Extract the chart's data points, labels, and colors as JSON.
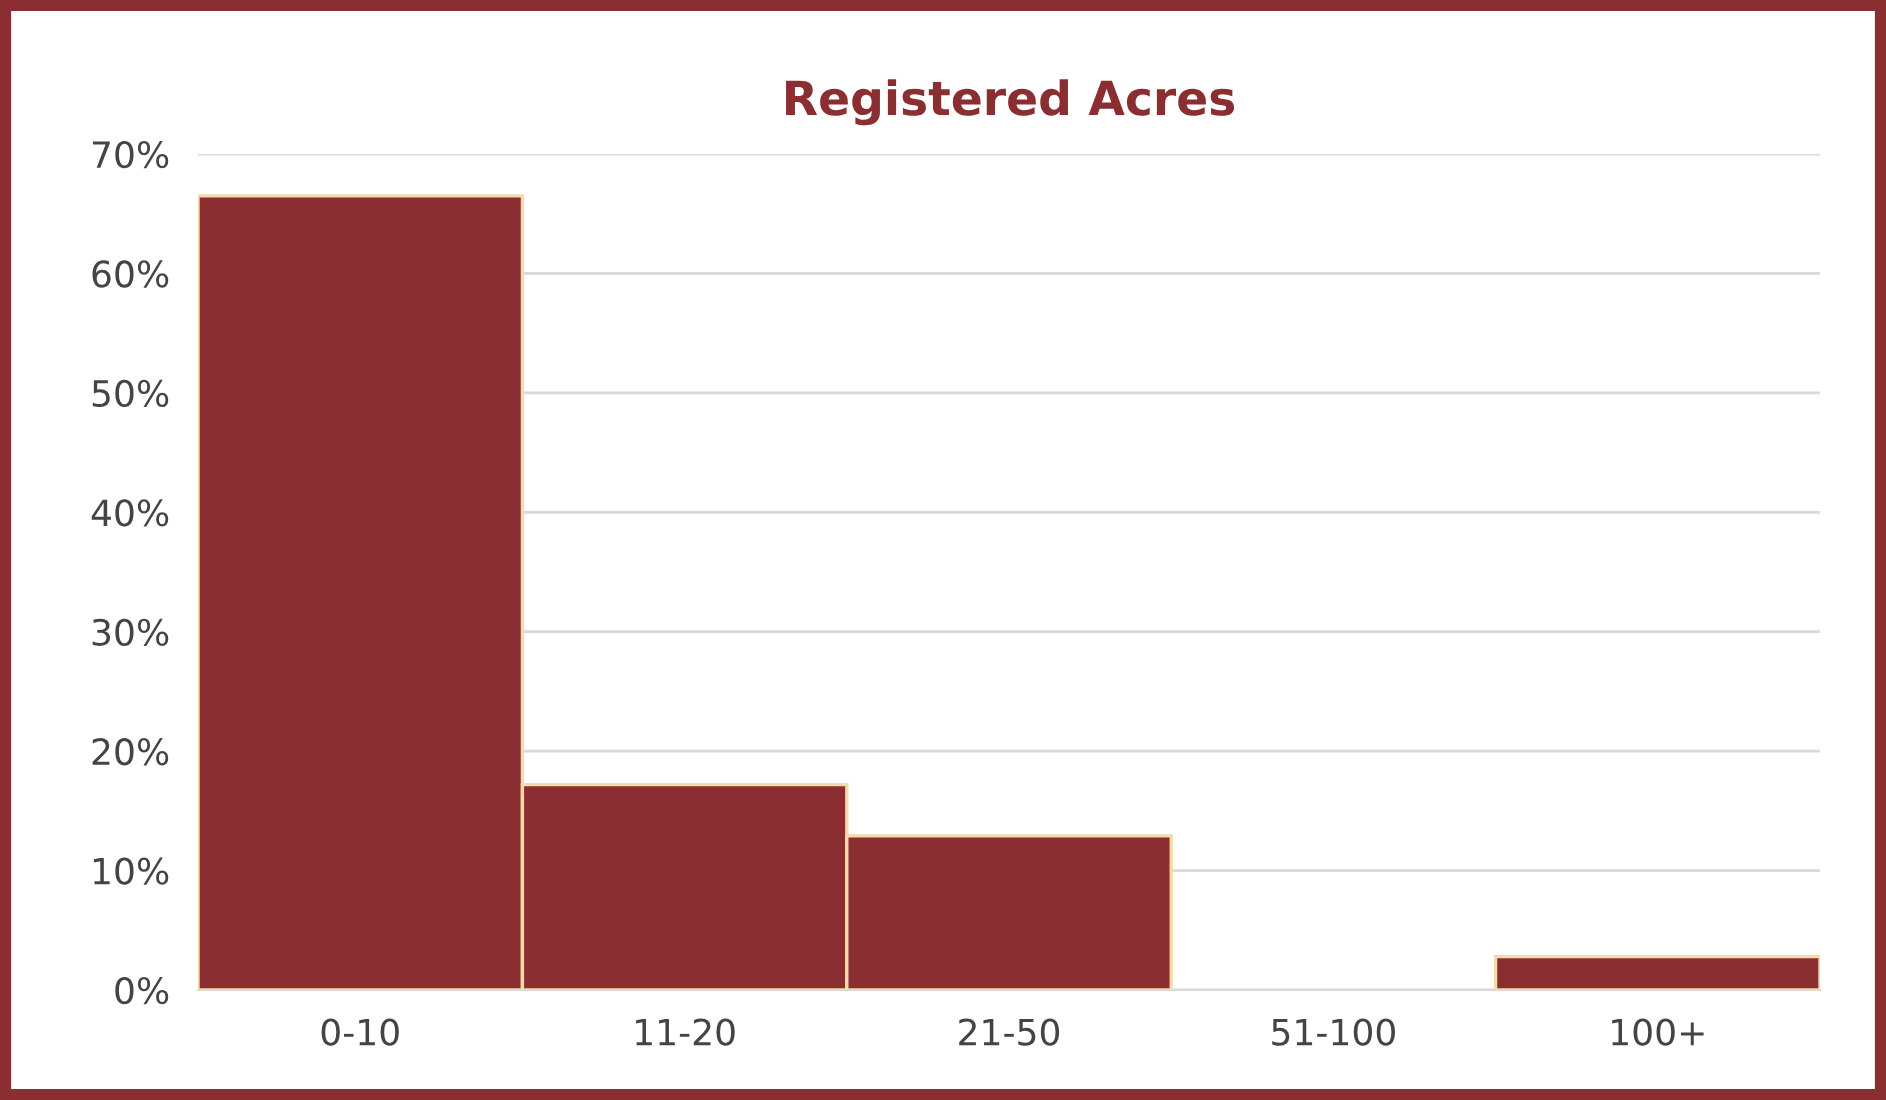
{
  "chart_data": {
    "type": "bar",
    "title": "Registered Acres",
    "categories": [
      "0-10",
      "11-20",
      "21-50",
      "51-100",
      "100+"
    ],
    "values": [
      66.5,
      17.2,
      12.9,
      0,
      2.8
    ],
    "color": "#8b2e32",
    "ylim": [
      0,
      70
    ],
    "yticks": [
      {
        "value": 0,
        "label": "0%"
      },
      {
        "value": 10,
        "label": "10%"
      },
      {
        "value": 20,
        "label": "20%"
      },
      {
        "value": 30,
        "label": "30%"
      },
      {
        "value": 40,
        "label": "40%"
      },
      {
        "value": 50,
        "label": "50%"
      },
      {
        "value": 60,
        "label": "60%"
      },
      {
        "value": 70,
        "label": "70%"
      }
    ],
    "grid": "y"
  }
}
